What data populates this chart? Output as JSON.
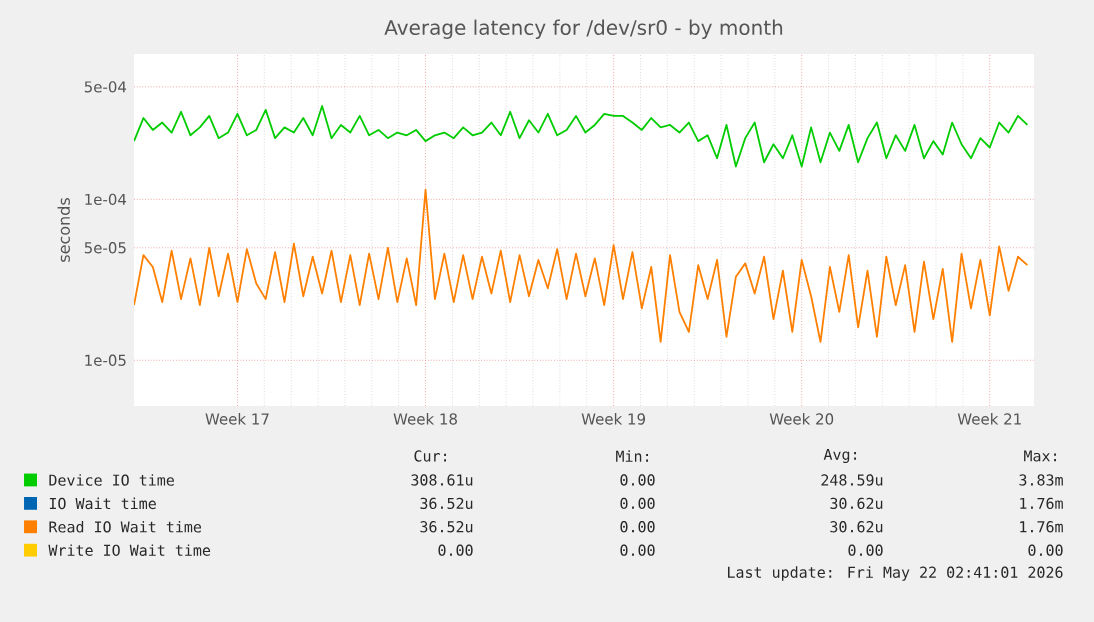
{
  "chart_data": {
    "type": "line",
    "title": "Average latency for /dev/sr0 - by month",
    "ylabel": "seconds",
    "log": "y",
    "grid": true,
    "legend": "bottom",
    "ylim": [
      5.2e-06,
      0.0008
    ],
    "categories": [
      null,
      null,
      null,
      null,
      null,
      null,
      null,
      null,
      null,
      null,
      null,
      "Week 17",
      null,
      null,
      null,
      null,
      null,
      null,
      null,
      null,
      null,
      null,
      null,
      null,
      null,
      null,
      null,
      null,
      null,
      null,
      null,
      "Week 18",
      null,
      null,
      null,
      null,
      null,
      null,
      null,
      null,
      null,
      null,
      null,
      null,
      null,
      null,
      null,
      null,
      null,
      null,
      null,
      "Week 19",
      null,
      null,
      null,
      null,
      null,
      null,
      null,
      null,
      null,
      null,
      null,
      null,
      null,
      null,
      null,
      null,
      null,
      null,
      null,
      "Week 20",
      null,
      null,
      null,
      null,
      null,
      null,
      null,
      null,
      null,
      null,
      null,
      null,
      null,
      null,
      null,
      null,
      null,
      null,
      null,
      "Week 21",
      null,
      null,
      null,
      null
    ],
    "yticks": [
      {
        "value": 1e-05,
        "label": "1e-05"
      },
      {
        "value": 5e-05,
        "label": "5e-05"
      },
      {
        "value": 0.0001,
        "label": "1e-04"
      },
      {
        "value": 0.0005,
        "label": "5e-04"
      }
    ],
    "series": [
      {
        "name": "Device IO time",
        "color": "#00cc00",
        "values": [
          0.00023,
          0.00032,
          0.00027,
          0.0003,
          0.00026,
          0.00035,
          0.00025,
          0.00028,
          0.00033,
          0.00024,
          0.00026,
          0.00034,
          0.00025,
          0.00027,
          0.00036,
          0.00024,
          0.00028,
          0.00026,
          0.00032,
          0.00025,
          0.00038,
          0.00024,
          0.00029,
          0.00026,
          0.00033,
          0.00025,
          0.00027,
          0.00024,
          0.00026,
          0.00025,
          0.00027,
          0.00023,
          0.00025,
          0.00026,
          0.00024,
          0.00028,
          0.00025,
          0.00026,
          0.0003,
          0.00025,
          0.00035,
          0.00024,
          0.00031,
          0.00026,
          0.00034,
          0.00025,
          0.00027,
          0.00033,
          0.00026,
          0.00029,
          0.00034,
          0.00033,
          0.00033,
          0.0003,
          0.00027,
          0.00032,
          0.00028,
          0.00029,
          0.00026,
          0.0003,
          0.00023,
          0.00025,
          0.00018,
          0.00029,
          0.00016,
          0.00024,
          0.0003,
          0.00017,
          0.00022,
          0.00018,
          0.00025,
          0.00016,
          0.00028,
          0.00017,
          0.00026,
          0.0002,
          0.00029,
          0.00017,
          0.00024,
          0.0003,
          0.00018,
          0.00025,
          0.0002,
          0.00029,
          0.00018,
          0.00023,
          0.00019,
          0.0003,
          0.00022,
          0.00018,
          0.00024,
          0.00021,
          0.0003,
          0.00026,
          0.00033,
          0.00029
        ]
      },
      {
        "name": "IO Wait time",
        "color": "#0066b3",
        "values": [
          null,
          null,
          null,
          null,
          null,
          null,
          null,
          null,
          null,
          null,
          null,
          null,
          null,
          null,
          null,
          null,
          null,
          null,
          null,
          null,
          null,
          null,
          null,
          null,
          null,
          null,
          null,
          null,
          null,
          null,
          null,
          null,
          null,
          null,
          null,
          null,
          null,
          null,
          null,
          null,
          null,
          null,
          null,
          null,
          null,
          null,
          null,
          null,
          null,
          null,
          null,
          null,
          null,
          null,
          null,
          null,
          null,
          null,
          null,
          null,
          null,
          null,
          null,
          null,
          null,
          null,
          null,
          null,
          null,
          null,
          null,
          null,
          null,
          null,
          null,
          null,
          null,
          null,
          null,
          null,
          null,
          null,
          null,
          null,
          null,
          null,
          null,
          null,
          null,
          null,
          null,
          null,
          null,
          null,
          null,
          null
        ]
      },
      {
        "name": "Read IO Wait time",
        "color": "#ff8000",
        "values": [
          2.2e-05,
          4.5e-05,
          3.8e-05,
          2.3e-05,
          4.8e-05,
          2.4e-05,
          4.3e-05,
          2.2e-05,
          5e-05,
          2.5e-05,
          4.6e-05,
          2.3e-05,
          4.9e-05,
          3e-05,
          2.4e-05,
          4.7e-05,
          2.3e-05,
          5.3e-05,
          2.5e-05,
          4.4e-05,
          2.6e-05,
          4.8e-05,
          2.3e-05,
          4.5e-05,
          2.2e-05,
          4.6e-05,
          2.4e-05,
          5e-05,
          2.3e-05,
          4.3e-05,
          2.2e-05,
          0.000115,
          2.4e-05,
          4.6e-05,
          2.3e-05,
          4.5e-05,
          2.4e-05,
          4.4e-05,
          2.6e-05,
          4.8e-05,
          2.3e-05,
          4.5e-05,
          2.5e-05,
          4.2e-05,
          2.8e-05,
          4.9e-05,
          2.4e-05,
          4.6e-05,
          2.5e-05,
          4.3e-05,
          2.2e-05,
          5.2e-05,
          2.4e-05,
          4.7e-05,
          2.1e-05,
          3.8e-05,
          1.3e-05,
          4.5e-05,
          2e-05,
          1.5e-05,
          3.9e-05,
          2.4e-05,
          4.2e-05,
          1.4e-05,
          3.3e-05,
          4e-05,
          2.6e-05,
          4.4e-05,
          1.8e-05,
          3.6e-05,
          1.5e-05,
          4.2e-05,
          2.5e-05,
          1.3e-05,
          3.8e-05,
          2e-05,
          4.5e-05,
          1.6e-05,
          3.6e-05,
          1.4e-05,
          4.4e-05,
          2.2e-05,
          3.9e-05,
          1.5e-05,
          4.1e-05,
          1.8e-05,
          3.7e-05,
          1.3e-05,
          4.6e-05,
          2.1e-05,
          4.2e-05,
          1.9e-05,
          5.1e-05,
          2.7e-05,
          4.4e-05,
          3.9e-05
        ]
      },
      {
        "name": "Write IO Wait time",
        "color": "#ffcc00",
        "values": [
          null,
          null,
          null,
          null,
          null,
          null,
          null,
          null,
          null,
          null,
          null,
          null,
          null,
          null,
          null,
          null,
          null,
          null,
          null,
          null,
          null,
          null,
          null,
          null,
          null,
          null,
          null,
          null,
          null,
          null,
          null,
          null,
          null,
          null,
          null,
          null,
          null,
          null,
          null,
          null,
          null,
          null,
          null,
          null,
          null,
          null,
          null,
          null,
          null,
          null,
          null,
          null,
          null,
          null,
          null,
          null,
          null,
          null,
          null,
          null,
          null,
          null,
          null,
          null,
          null,
          null,
          null,
          null,
          null,
          null,
          null,
          null,
          null,
          null,
          null,
          null,
          null,
          null,
          null,
          null,
          null,
          null,
          null,
          null,
          null,
          null,
          null,
          null,
          null,
          null,
          null,
          null,
          null,
          null,
          null,
          null
        ]
      }
    ],
    "annotations": [
      "Cur:",
      "Min:",
      "Avg:",
      "Max:",
      "308.61u",
      "0.00",
      "248.59u",
      "3.83m",
      "36.52u",
      "0.00",
      "30.62u",
      "1.76m",
      "36.52u",
      "0.00",
      "30.62u",
      "1.76m",
      "0.00",
      "0.00",
      "0.00",
      "0.00",
      "Last update: Fri May 22 02:41:01 2026"
    ]
  }
}
